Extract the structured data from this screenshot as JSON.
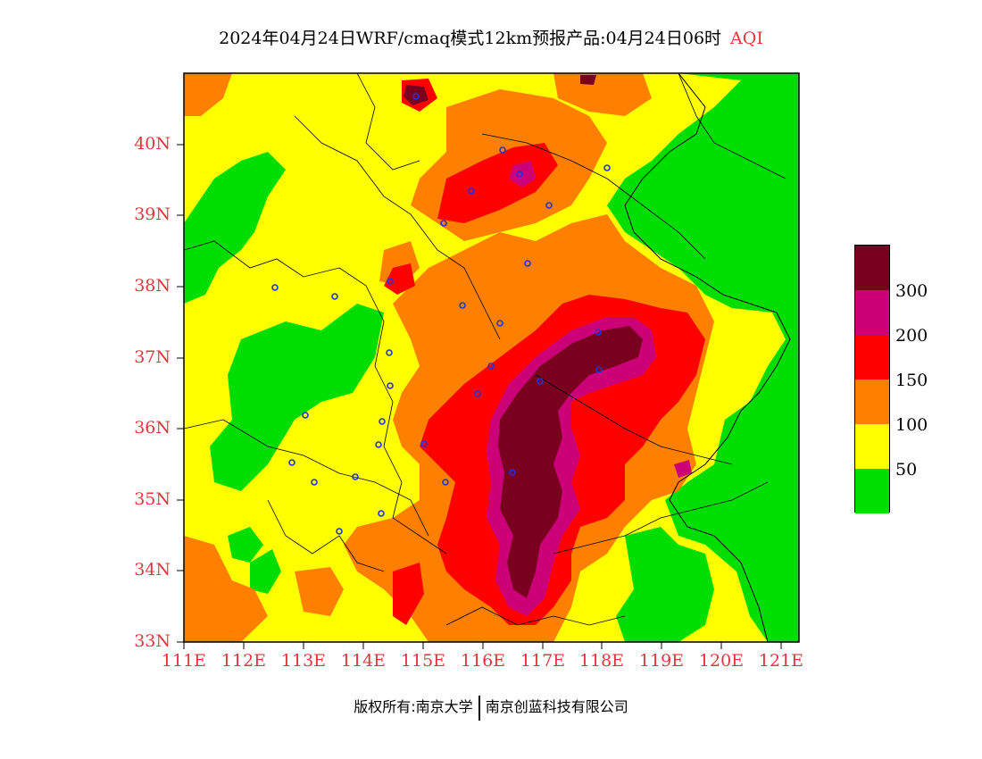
{
  "title": {
    "main": "2024年04月24日WRF/cmaq模式12km预报产品:04月24日06时",
    "variable": "AQI"
  },
  "axes": {
    "lat_labels": [
      "40N",
      "39N",
      "38N",
      "37N",
      "36N",
      "35N",
      "34N",
      "33N"
    ],
    "lon_labels": [
      "111E",
      "112E",
      "113E",
      "114E",
      "115E",
      "116E",
      "117E",
      "118E",
      "119E",
      "120E",
      "121E"
    ]
  },
  "map_extent": {
    "lon_min": 111,
    "lon_max": 121.3,
    "lat_min": 33,
    "lat_max": 41
  },
  "legend": {
    "labels": [
      "300",
      "200",
      "150",
      "100",
      "50"
    ],
    "colors": {
      "good": "#00dd00",
      "moderate": "#ffff00",
      "unhealthy_sensitive": "#ff8000",
      "unhealthy": "#ff0000",
      "very_unhealthy": "#cc0077",
      "hazardous": "#7a0020"
    }
  },
  "footer": {
    "copyright": "版权所有:南京大学",
    "company": "南京创蓝科技有限公司"
  }
}
